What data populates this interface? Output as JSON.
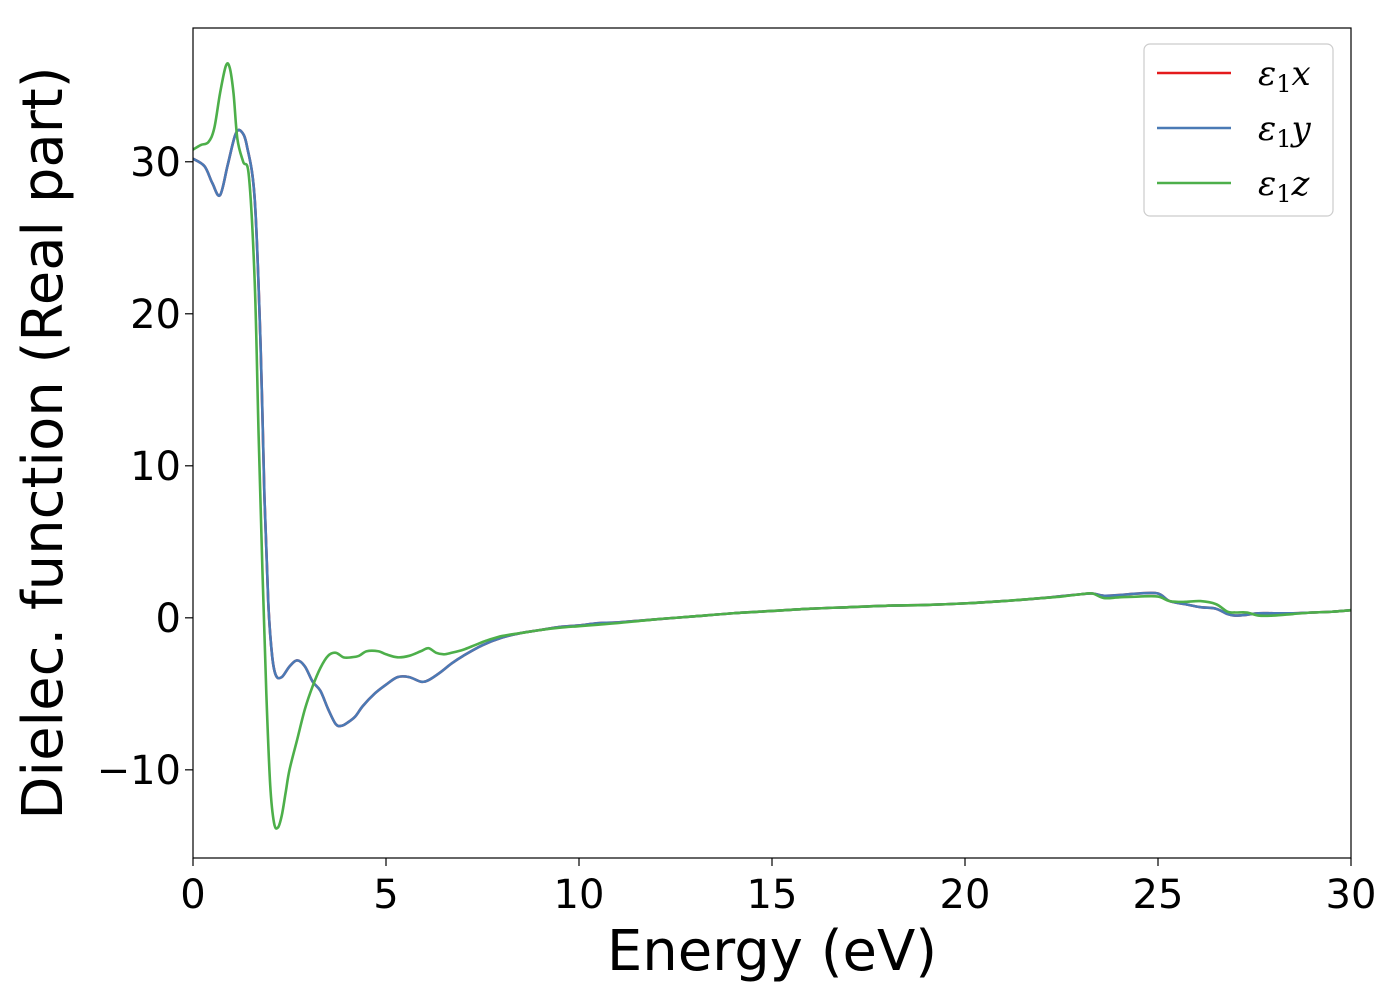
{
  "chart_data": {
    "type": "line",
    "xlabel": "Energy (eV)",
    "ylabel": "Dielec. function (Real part)",
    "xlim": [
      0,
      30
    ],
    "ylim": [
      -15.8,
      38.8
    ],
    "xticks": [
      0,
      5,
      10,
      15,
      20,
      25,
      30
    ],
    "yticks": [
      -10,
      0,
      10,
      20,
      30
    ],
    "xtick_labels": [
      "0",
      "5",
      "10",
      "15",
      "20",
      "25",
      "30"
    ],
    "ytick_labels": [
      "−10",
      "0",
      "10",
      "20",
      "30"
    ],
    "grid": false,
    "legend_position": "top-right",
    "series": [
      {
        "name": "ε₁x",
        "legend_base": "ε",
        "legend_sub": "1",
        "legend_var": "x",
        "color": "#e41a1c",
        "x": [
          0,
          0.3,
          0.5,
          0.7,
          0.9,
          1.1,
          1.25,
          1.4,
          1.6,
          1.75,
          1.85,
          1.95,
          2.05,
          2.15,
          2.3,
          2.5,
          2.7,
          2.9,
          3.1,
          3.3,
          3.5,
          3.7,
          3.85,
          4.0,
          4.2,
          4.4,
          4.7,
          5.0,
          5.3,
          5.6,
          5.9,
          6.1,
          6.4,
          6.7,
          7.0,
          7.5,
          8.0,
          8.5,
          9.0,
          9.5,
          10.0,
          10.5,
          11.0,
          12.0,
          13.0,
          14.0,
          15.0,
          16.0,
          17.0,
          18.0,
          19.0,
          20.0,
          21.0,
          22.0,
          23.0,
          23.3,
          23.6,
          24.0,
          24.5,
          25.0,
          25.3,
          25.7,
          26.1,
          26.5,
          26.8,
          27.0,
          27.3,
          27.6,
          28.0,
          28.5,
          29.0,
          29.5,
          30.0
        ],
        "values": [
          30.2,
          29.7,
          28.6,
          27.8,
          29.8,
          31.8,
          32.0,
          31.0,
          27.5,
          18.0,
          8.0,
          1.0,
          -2.5,
          -3.8,
          -3.9,
          -3.2,
          -2.8,
          -3.2,
          -4.2,
          -4.8,
          -6.0,
          -7.0,
          -7.1,
          -6.9,
          -6.5,
          -5.8,
          -5.0,
          -4.4,
          -3.9,
          -3.9,
          -4.2,
          -4.1,
          -3.6,
          -3.0,
          -2.5,
          -1.8,
          -1.3,
          -1.0,
          -0.8,
          -0.6,
          -0.5,
          -0.35,
          -0.3,
          -0.1,
          0.1,
          0.3,
          0.45,
          0.6,
          0.7,
          0.8,
          0.85,
          0.95,
          1.1,
          1.3,
          1.55,
          1.6,
          1.45,
          1.5,
          1.6,
          1.6,
          1.1,
          0.9,
          0.7,
          0.6,
          0.25,
          0.15,
          0.2,
          0.3,
          0.3,
          0.3,
          0.35,
          0.4,
          0.5
        ]
      },
      {
        "name": "ε₁y",
        "legend_base": "ε",
        "legend_sub": "1",
        "legend_var": "y",
        "color": "#4a7ab5",
        "x": [
          0,
          0.3,
          0.5,
          0.7,
          0.9,
          1.1,
          1.25,
          1.4,
          1.6,
          1.75,
          1.85,
          1.95,
          2.05,
          2.15,
          2.3,
          2.5,
          2.7,
          2.9,
          3.1,
          3.3,
          3.5,
          3.7,
          3.85,
          4.0,
          4.2,
          4.4,
          4.7,
          5.0,
          5.3,
          5.6,
          5.9,
          6.1,
          6.4,
          6.7,
          7.0,
          7.5,
          8.0,
          8.5,
          9.0,
          9.5,
          10.0,
          10.5,
          11.0,
          12.0,
          13.0,
          14.0,
          15.0,
          16.0,
          17.0,
          18.0,
          19.0,
          20.0,
          21.0,
          22.0,
          23.0,
          23.3,
          23.6,
          24.0,
          24.5,
          25.0,
          25.3,
          25.7,
          26.1,
          26.5,
          26.8,
          27.0,
          27.3,
          27.6,
          28.0,
          28.5,
          29.0,
          29.5,
          30.0
        ],
        "values": [
          30.2,
          29.7,
          28.6,
          27.8,
          29.8,
          31.8,
          32.0,
          31.0,
          27.5,
          18.0,
          8.0,
          1.0,
          -2.5,
          -3.8,
          -3.9,
          -3.2,
          -2.8,
          -3.2,
          -4.2,
          -4.8,
          -6.0,
          -7.0,
          -7.1,
          -6.9,
          -6.5,
          -5.8,
          -5.0,
          -4.4,
          -3.9,
          -3.9,
          -4.2,
          -4.1,
          -3.6,
          -3.0,
          -2.5,
          -1.8,
          -1.3,
          -1.0,
          -0.8,
          -0.6,
          -0.5,
          -0.35,
          -0.3,
          -0.1,
          0.1,
          0.3,
          0.45,
          0.6,
          0.7,
          0.8,
          0.85,
          0.95,
          1.1,
          1.3,
          1.55,
          1.6,
          1.45,
          1.5,
          1.6,
          1.6,
          1.1,
          0.9,
          0.7,
          0.6,
          0.25,
          0.15,
          0.2,
          0.3,
          0.3,
          0.3,
          0.35,
          0.4,
          0.5
        ]
      },
      {
        "name": "ε₁z",
        "legend_base": "ε",
        "legend_sub": "1",
        "legend_var": "z",
        "color": "#4daf4a",
        "x": [
          0,
          0.2,
          0.4,
          0.55,
          0.7,
          0.85,
          0.95,
          1.05,
          1.15,
          1.3,
          1.45,
          1.6,
          1.7,
          1.8,
          1.9,
          2.0,
          2.1,
          2.2,
          2.3,
          2.4,
          2.5,
          2.7,
          2.9,
          3.1,
          3.3,
          3.5,
          3.7,
          3.9,
          4.1,
          4.3,
          4.5,
          4.8,
          5.0,
          5.3,
          5.6,
          5.9,
          6.1,
          6.3,
          6.5,
          6.7,
          7.0,
          7.3,
          7.6,
          8.0,
          8.5,
          9.0,
          9.5,
          10.0,
          10.5,
          11.0,
          12.0,
          13.0,
          14.0,
          15.0,
          16.0,
          17.0,
          18.0,
          19.0,
          20.0,
          21.0,
          22.0,
          22.5,
          23.0,
          23.3,
          23.6,
          24.0,
          24.5,
          25.0,
          25.3,
          25.7,
          26.1,
          26.5,
          26.8,
          27.0,
          27.3,
          27.6,
          28.0,
          28.5,
          29.0,
          29.5,
          30.0
        ],
        "values": [
          30.8,
          31.1,
          31.3,
          32.2,
          34.5,
          36.3,
          36.2,
          34.5,
          31.5,
          30.0,
          29.0,
          22.0,
          12.0,
          3.0,
          -5.0,
          -11.0,
          -13.5,
          -13.8,
          -13.0,
          -11.5,
          -10.0,
          -8.0,
          -6.0,
          -4.5,
          -3.3,
          -2.5,
          -2.3,
          -2.6,
          -2.6,
          -2.5,
          -2.2,
          -2.2,
          -2.4,
          -2.6,
          -2.5,
          -2.2,
          -2.0,
          -2.3,
          -2.4,
          -2.3,
          -2.1,
          -1.8,
          -1.5,
          -1.2,
          -1.0,
          -0.8,
          -0.65,
          -0.55,
          -0.45,
          -0.35,
          -0.1,
          0.1,
          0.3,
          0.45,
          0.6,
          0.7,
          0.8,
          0.85,
          0.95,
          1.1,
          1.3,
          1.4,
          1.55,
          1.6,
          1.3,
          1.35,
          1.4,
          1.4,
          1.1,
          1.05,
          1.1,
          0.9,
          0.4,
          0.35,
          0.35,
          0.15,
          0.15,
          0.25,
          0.35,
          0.4,
          0.5
        ]
      }
    ]
  }
}
